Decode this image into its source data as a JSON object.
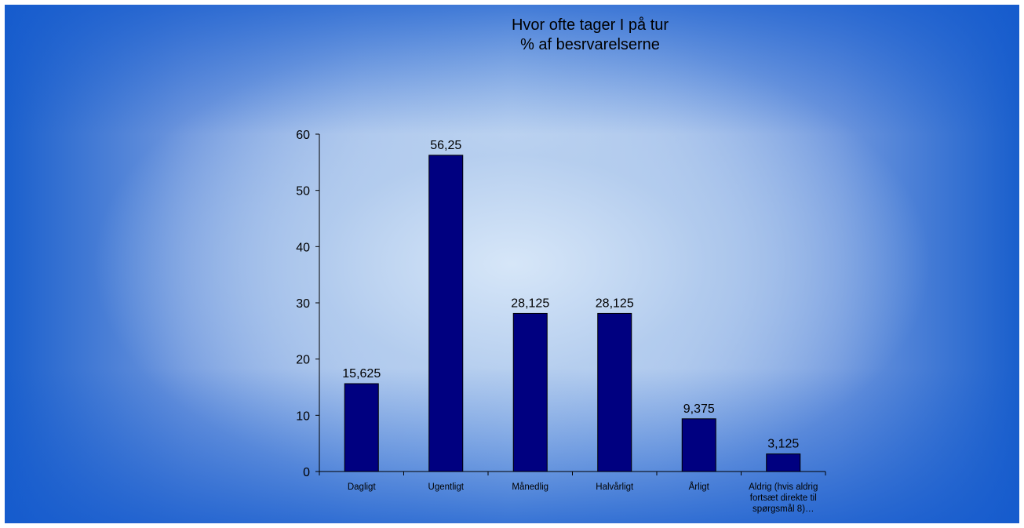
{
  "chart_data": {
    "type": "bar",
    "title": [
      "Hvor ofte tager I på tur",
      "% af besrvarelserne"
    ],
    "categories": [
      [
        "Dagligt"
      ],
      [
        "Ugentligt"
      ],
      [
        "Månedlig"
      ],
      [
        "Halvårligt"
      ],
      [
        "Årligt"
      ],
      [
        "Aldrig (hvis aldrig",
        "fortsæt direkte til",
        "spørgsmål 8)…"
      ]
    ],
    "values": [
      15.625,
      56.25,
      28.125,
      28.125,
      9.375,
      3.125
    ],
    "value_labels": [
      "15,625",
      "56,25",
      "28,125",
      "28,125",
      "9,375",
      "3,125"
    ],
    "yticks": [
      0,
      10,
      20,
      30,
      40,
      50,
      60
    ],
    "ylim": [
      0,
      60
    ],
    "xlabel": "",
    "ylabel": "",
    "bar_color": "#000080",
    "grid": false,
    "legend": "none"
  }
}
